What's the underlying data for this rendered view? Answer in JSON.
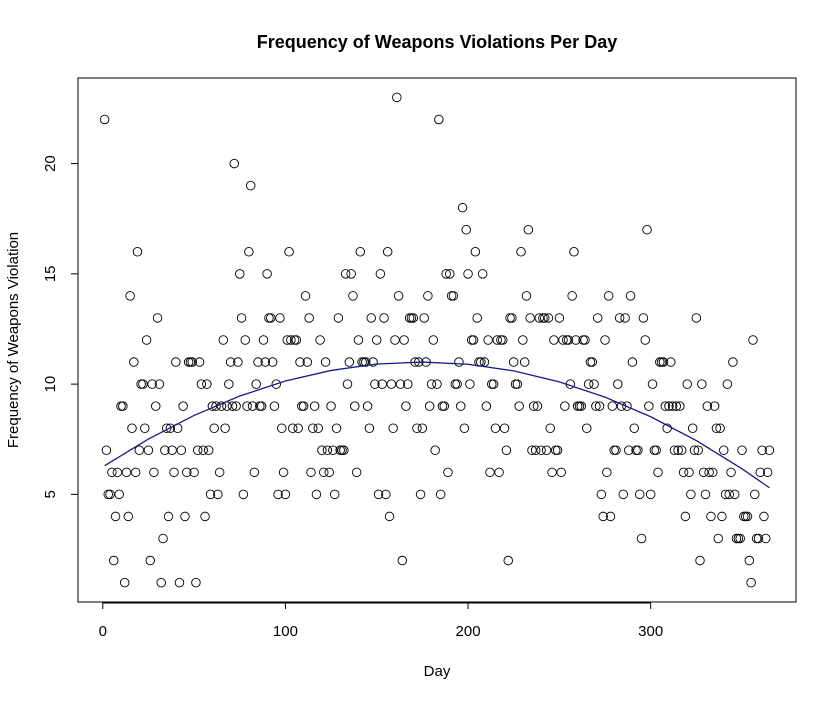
{
  "chart_data": {
    "type": "scatter",
    "title": "Frequency of Weapons Violations Per Day",
    "x_label": "Day",
    "y_label": "Frequency of Weapons Violation",
    "xlim": [
      -13.56,
      379.56
    ],
    "ylim": [
      0.12,
      23.88
    ],
    "xticks": [
      0,
      100,
      200,
      300
    ],
    "yticks": [
      5,
      10,
      15,
      20
    ],
    "marker_color": "#000000",
    "x": [
      1,
      2,
      3,
      4,
      5,
      6,
      7,
      8,
      9,
      10,
      11,
      12,
      13,
      14,
      15,
      16,
      17,
      18,
      19,
      20,
      21,
      22,
      23,
      24,
      25,
      26,
      27,
      28,
      29,
      30,
      31,
      32,
      33,
      34,
      35,
      36,
      37,
      38,
      39,
      40,
      41,
      42,
      43,
      44,
      45,
      46,
      47,
      48,
      49,
      50,
      51,
      52,
      53,
      54,
      55,
      56,
      57,
      58,
      59,
      60,
      61,
      62,
      63,
      64,
      65,
      66,
      67,
      68,
      69,
      70,
      71,
      72,
      73,
      74,
      75,
      76,
      77,
      78,
      79,
      80,
      81,
      82,
      83,
      84,
      85,
      86,
      87,
      88,
      89,
      90,
      91,
      92,
      93,
      94,
      95,
      96,
      97,
      98,
      99,
      100,
      101,
      102,
      103,
      104,
      105,
      106,
      107,
      108,
      109,
      110,
      111,
      112,
      113,
      114,
      115,
      116,
      117,
      118,
      119,
      120,
      121,
      122,
      123,
      124,
      125,
      126,
      127,
      128,
      129,
      130,
      131,
      132,
      133,
      134,
      135,
      136,
      137,
      138,
      139,
      140,
      141,
      142,
      143,
      144,
      145,
      146,
      147,
      148,
      149,
      150,
      151,
      152,
      153,
      154,
      155,
      156,
      157,
      158,
      159,
      160,
      161,
      162,
      163,
      164,
      165,
      166,
      167,
      168,
      169,
      170,
      171,
      172,
      173,
      174,
      175,
      176,
      177,
      178,
      179,
      180,
      181,
      182,
      183,
      184,
      185,
      186,
      187,
      188,
      189,
      190,
      191,
      192,
      193,
      194,
      195,
      196,
      197,
      198,
      199,
      200,
      201,
      202,
      203,
      204,
      205,
      206,
      207,
      208,
      209,
      210,
      211,
      212,
      213,
      214,
      215,
      216,
      217,
      218,
      219,
      220,
      221,
      222,
      223,
      224,
      225,
      226,
      227,
      228,
      229,
      230,
      231,
      232,
      233,
      234,
      235,
      236,
      237,
      238,
      239,
      240,
      241,
      242,
      243,
      244,
      245,
      246,
      247,
      248,
      249,
      250,
      251,
      252,
      253,
      254,
      255,
      256,
      257,
      258,
      259,
      260,
      261,
      262,
      263,
      264,
      265,
      266,
      267,
      268,
      269,
      270,
      271,
      272,
      273,
      274,
      275,
      276,
      277,
      278,
      279,
      280,
      281,
      282,
      283,
      284,
      285,
      286,
      287,
      288,
      289,
      290,
      291,
      292,
      293,
      294,
      295,
      296,
      297,
      298,
      299,
      300,
      301,
      302,
      303,
      304,
      305,
      306,
      307,
      308,
      309,
      310,
      311,
      312,
      313,
      314,
      315,
      316,
      317,
      318,
      319,
      320,
      321,
      322,
      323,
      324,
      325,
      326,
      327,
      328,
      329,
      330,
      331,
      332,
      333,
      334,
      335,
      336,
      337,
      338,
      339,
      340,
      341,
      342,
      343,
      344,
      345,
      346,
      347,
      348,
      349,
      350,
      351,
      352,
      353,
      354,
      355,
      356,
      357,
      358,
      359,
      360,
      361,
      362,
      363,
      364,
      365
    ],
    "values": [
      22,
      7,
      5,
      5,
      6,
      2,
      4,
      6,
      5,
      9,
      9,
      1,
      6,
      4,
      14,
      8,
      11,
      6,
      16,
      7,
      10,
      10,
      8,
      12,
      7,
      2,
      10,
      6,
      9,
      13,
      10,
      1,
      3,
      7,
      8,
      4,
      8,
      7,
      6,
      11,
      8,
      1,
      7,
      9,
      4,
      6,
      11,
      11,
      11,
      6,
      1,
      7,
      11,
      10,
      7,
      4,
      10,
      7,
      5,
      9,
      8,
      9,
      5,
      6,
      9,
      12,
      8,
      9,
      10,
      11,
      9,
      20,
      9,
      11,
      15,
      13,
      5,
      12,
      9,
      16,
      19,
      9,
      6,
      10,
      11,
      9,
      9,
      12,
      11,
      15,
      13,
      13,
      11,
      9,
      10,
      5,
      13,
      8,
      6,
      5,
      12,
      16,
      12,
      8,
      12,
      12,
      8,
      11,
      9,
      9,
      14,
      11,
      13,
      6,
      8,
      9,
      5,
      8,
      12,
      7,
      6,
      11,
      7,
      6,
      9,
      7,
      5,
      8,
      13,
      7,
      7,
      7,
      15,
      10,
      11,
      15,
      14,
      9,
      6,
      12,
      16,
      11,
      11,
      11,
      9,
      8,
      13,
      11,
      10,
      12,
      5,
      15,
      10,
      13,
      5,
      16,
      4,
      10,
      8,
      12,
      23,
      14,
      10,
      2,
      12,
      9,
      10,
      13,
      13,
      13,
      11,
      8,
      11,
      5,
      8,
      13,
      11,
      14,
      9,
      10,
      12,
      7,
      10,
      22,
      5,
      9,
      9,
      15,
      6,
      15,
      14,
      14,
      10,
      10,
      11,
      9,
      18,
      8,
      17,
      15,
      10,
      12,
      12,
      16,
      13,
      11,
      11,
      15,
      11,
      9,
      12,
      6,
      10,
      10,
      8,
      12,
      6,
      12,
      12,
      8,
      7,
      2,
      13,
      13,
      11,
      10,
      10,
      9,
      16,
      12,
      11,
      14,
      17,
      13,
      7,
      9,
      7,
      9,
      13,
      7,
      13,
      13,
      7,
      13,
      8,
      6,
      12,
      7,
      7,
      13,
      6,
      12,
      9,
      12,
      12,
      10,
      14,
      16,
      12,
      9,
      9,
      9,
      12,
      12,
      8,
      10,
      11,
      11,
      10,
      9,
      13,
      9,
      5,
      4,
      12,
      6,
      14,
      4,
      9,
      7,
      7,
      10,
      13,
      9,
      5,
      13,
      9,
      7,
      14,
      11,
      8,
      7,
      7,
      5,
      3,
      13,
      12,
      17,
      9,
      5,
      10,
      7,
      7,
      6,
      11,
      11,
      11,
      9,
      8,
      9,
      11,
      9,
      7,
      9,
      7,
      9,
      7,
      6,
      4,
      10,
      6,
      5,
      8,
      7,
      13,
      7,
      2,
      10,
      6,
      5,
      9,
      6,
      4,
      6,
      9,
      8,
      3,
      8,
      4,
      7,
      5,
      10,
      5,
      6,
      11,
      5,
      3,
      3,
      3,
      7,
      4,
      4,
      4,
      2,
      1,
      12,
      5,
      3,
      3,
      6,
      7,
      4,
      3,
      6,
      7
    ],
    "fit": {
      "type": "line",
      "color": "#1a1a8c",
      "x": [
        1,
        25,
        50,
        75,
        100,
        125,
        150,
        175,
        200,
        225,
        250,
        275,
        300,
        325,
        350,
        365
      ],
      "values": [
        6.3,
        7.51,
        8.58,
        9.46,
        10.14,
        10.62,
        10.91,
        11.0,
        10.9,
        10.6,
        10.1,
        9.41,
        8.52,
        7.44,
        6.16,
        5.3
      ]
    }
  }
}
